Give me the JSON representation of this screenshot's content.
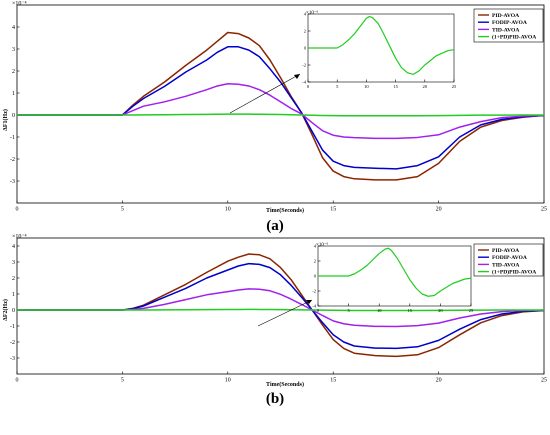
{
  "chart_data": [
    {
      "type": "line",
      "panel_caption": "(a)",
      "xlabel": "Time(Seconds)",
      "ylabel": "ΔF1(Hz)",
      "y_exponent": "×10⁻⁴",
      "xlim": [
        0,
        25
      ],
      "ylim": [
        -4,
        5
      ],
      "xticks": [
        0,
        5,
        10,
        15,
        20,
        25
      ],
      "yticks": [
        -3,
        -2,
        -1,
        0,
        1,
        2,
        3,
        4
      ],
      "grid": false,
      "legend_position": "top-right",
      "x": [
        0,
        5,
        5.5,
        6,
        7,
        8,
        9,
        9.5,
        10,
        10.5,
        11,
        11.5,
        12,
        12.5,
        13,
        13.5,
        14,
        14.5,
        15,
        15.5,
        16,
        17,
        18,
        19,
        20,
        21,
        22,
        23,
        24,
        25
      ],
      "series": [
        {
          "name": "PID-AVOA",
          "color": "#8B2500",
          "values": [
            0,
            0,
            0.45,
            0.85,
            1.5,
            2.25,
            2.95,
            3.35,
            3.75,
            3.7,
            3.5,
            3.15,
            2.5,
            1.7,
            0.85,
            0.1,
            -0.9,
            -1.95,
            -2.55,
            -2.8,
            -2.9,
            -2.95,
            -2.95,
            -2.8,
            -2.2,
            -1.2,
            -0.55,
            -0.25,
            -0.1,
            -0.02
          ]
        },
        {
          "name": "FODIP-AVOA",
          "color": "#0000CC",
          "values": [
            0,
            0,
            0.4,
            0.75,
            1.3,
            1.95,
            2.5,
            2.85,
            3.1,
            3.1,
            2.95,
            2.65,
            2.1,
            1.5,
            0.8,
            0.1,
            -0.75,
            -1.6,
            -2.1,
            -2.3,
            -2.38,
            -2.42,
            -2.45,
            -2.3,
            -1.9,
            -1.0,
            -0.45,
            -0.2,
            -0.08,
            -0.02
          ]
        },
        {
          "name": "TID-AVOA",
          "color": "#A020F0",
          "values": [
            0,
            0,
            0.2,
            0.4,
            0.6,
            0.85,
            1.15,
            1.32,
            1.42,
            1.4,
            1.32,
            1.15,
            0.9,
            0.6,
            0.3,
            0.05,
            -0.35,
            -0.72,
            -0.92,
            -1.0,
            -1.03,
            -1.06,
            -1.06,
            -1.02,
            -0.9,
            -0.55,
            -0.3,
            -0.12,
            -0.05,
            -0.01
          ]
        },
        {
          "name": "(1+PD)PID-AVOA",
          "color": "#22CC22",
          "values": [
            0,
            0,
            0.002,
            0.005,
            0.01,
            0.02,
            0.03,
            0.035,
            0.04,
            0.04,
            0.038,
            0.034,
            0.028,
            0.02,
            0.01,
            0.002,
            -0.01,
            -0.02,
            -0.028,
            -0.032,
            -0.035,
            -0.036,
            -0.036,
            -0.034,
            -0.028,
            -0.016,
            -0.008,
            -0.004,
            -0.002,
            0
          ]
        }
      ],
      "inset": {
        "y_exponent": "×10⁻⁶",
        "xlim": [
          0,
          25
        ],
        "ylim": [
          -4,
          4
        ],
        "xticks": [
          0,
          5,
          10,
          15,
          20,
          25
        ],
        "yticks": [
          -4,
          -2,
          0,
          2,
          4
        ],
        "color": "#22CC22",
        "x": [
          0,
          5,
          6,
          7,
          8,
          9,
          10,
          10.5,
          11,
          12,
          13,
          14,
          15,
          16,
          17,
          18,
          19,
          20,
          22,
          24,
          25
        ],
        "values": [
          0,
          0,
          0.4,
          1.0,
          1.7,
          2.6,
          3.5,
          3.7,
          3.6,
          2.9,
          1.6,
          0.2,
          -1.2,
          -2.3,
          -2.9,
          -3.1,
          -2.7,
          -2.0,
          -0.9,
          -0.3,
          -0.2
        ]
      }
    },
    {
      "type": "line",
      "panel_caption": "(b)",
      "xlabel": "Time(Seconds)",
      "ylabel": "ΔF2(Hz)",
      "y_exponent": "×10⁻⁴",
      "xlim": [
        0,
        25
      ],
      "ylim": [
        -4,
        4.5
      ],
      "xticks": [
        0,
        5,
        10,
        15,
        20,
        25
      ],
      "yticks": [
        -3,
        -2,
        -1,
        0,
        1,
        2,
        3,
        4
      ],
      "grid": false,
      "legend_position": "top-right",
      "x": [
        0,
        5,
        5.5,
        6,
        7,
        8,
        9,
        10,
        10.5,
        11,
        11.5,
        12,
        12.5,
        13,
        13.5,
        14,
        14.5,
        15,
        15.5,
        16,
        17,
        18,
        19,
        20,
        21,
        22,
        23,
        24,
        25
      ],
      "series": [
        {
          "name": "PID-AVOA",
          "color": "#8B2500",
          "values": [
            0,
            0,
            0.1,
            0.3,
            0.95,
            1.6,
            2.35,
            3.05,
            3.3,
            3.5,
            3.45,
            3.2,
            2.65,
            1.9,
            0.95,
            0.0,
            -0.95,
            -1.85,
            -2.4,
            -2.7,
            -2.85,
            -2.9,
            -2.8,
            -2.35,
            -1.55,
            -0.8,
            -0.35,
            -0.12,
            -0.03
          ]
        },
        {
          "name": "FODIP-AVOA",
          "color": "#0000CC",
          "values": [
            0,
            0,
            0.08,
            0.25,
            0.8,
            1.35,
            2.0,
            2.5,
            2.75,
            2.9,
            2.85,
            2.65,
            2.2,
            1.55,
            0.8,
            0.0,
            -0.8,
            -1.55,
            -2.0,
            -2.25,
            -2.38,
            -2.4,
            -2.3,
            -1.9,
            -1.2,
            -0.6,
            -0.25,
            -0.08,
            -0.02
          ]
        },
        {
          "name": "TID-AVOA",
          "color": "#A020F0",
          "values": [
            0,
            0,
            0.03,
            0.1,
            0.35,
            0.65,
            0.95,
            1.15,
            1.25,
            1.32,
            1.3,
            1.2,
            0.98,
            0.68,
            0.35,
            0.0,
            -0.35,
            -0.68,
            -0.86,
            -0.95,
            -1.02,
            -1.03,
            -0.98,
            -0.82,
            -0.5,
            -0.25,
            -0.1,
            -0.03,
            -0.01
          ]
        },
        {
          "name": "(1+PD)PID-AVOA",
          "color": "#22CC22",
          "values": [
            0,
            0,
            0.001,
            0.003,
            0.008,
            0.015,
            0.022,
            0.03,
            0.034,
            0.036,
            0.035,
            0.032,
            0.026,
            0.018,
            0.009,
            0,
            -0.009,
            -0.018,
            -0.024,
            -0.028,
            -0.03,
            -0.031,
            -0.03,
            -0.025,
            -0.016,
            -0.008,
            -0.003,
            -0.001,
            0
          ]
        }
      ],
      "inset": {
        "y_exponent": "×10⁻⁶",
        "xlim": [
          0,
          25
        ],
        "ylim": [
          -4,
          4
        ],
        "xticks": [
          0,
          5,
          10,
          15,
          20,
          25
        ],
        "yticks": [
          -4,
          -2,
          0,
          2,
          4
        ],
        "color": "#22CC22",
        "x": [
          0,
          5,
          6,
          7,
          8,
          9,
          10,
          11,
          11.5,
          12,
          13,
          14,
          15,
          16,
          17,
          18,
          19,
          20,
          22,
          24,
          25
        ],
        "values": [
          0,
          0,
          0.3,
          0.8,
          1.4,
          2.2,
          3.0,
          3.6,
          3.7,
          3.4,
          2.3,
          0.9,
          -0.5,
          -1.6,
          -2.4,
          -2.7,
          -2.6,
          -2.0,
          -1.0,
          -0.4,
          -0.3
        ]
      }
    }
  ]
}
